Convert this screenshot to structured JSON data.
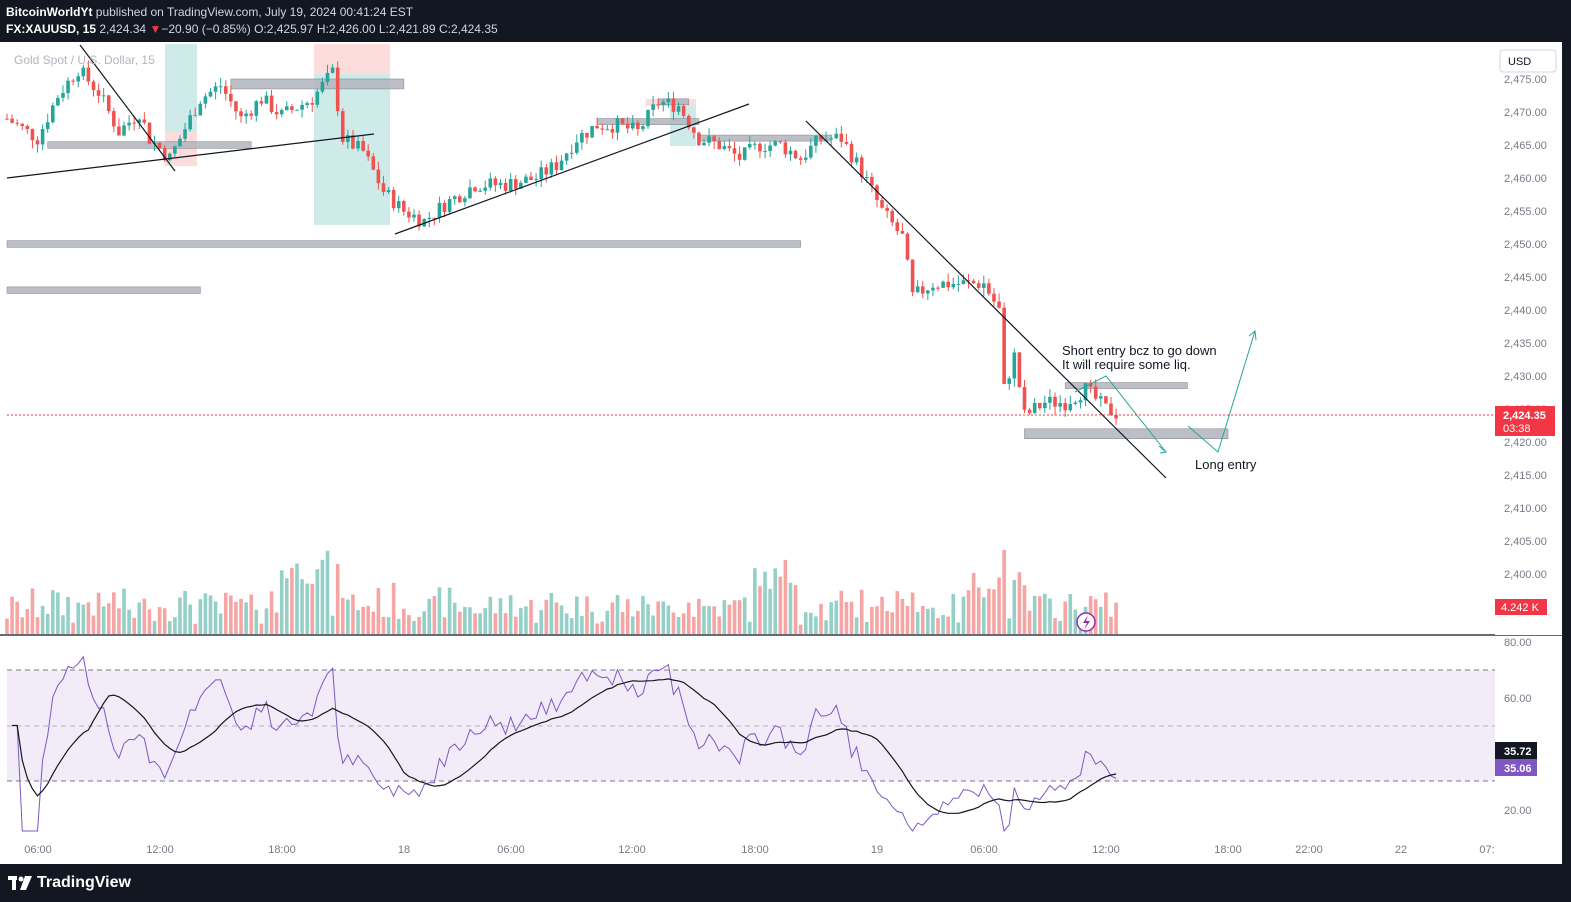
{
  "header": {
    "publisher": "BitcoinWorldYt",
    "published_on": "published on TradingView.com, July 19, 2024 00:41:24 EST",
    "symbol": "FX:XAUUSD, 15",
    "last": "2,424.34",
    "change_arrow": "▼",
    "change": "−20.90 (−0.85%)",
    "o_label": "O:",
    "o": "2,425.97",
    "h_label": "H:",
    "h": "2,426.00",
    "l_label": "L:",
    "l": "2,421.89",
    "c_label": "C:",
    "c": "2,424.35"
  },
  "chart_title": "Gold Spot / U.S. Dollar, 15",
  "currency_button": "USD",
  "colors": {
    "up": "#26a69a",
    "down": "#ef5350",
    "up_vol": "#94d0c7",
    "down_vol": "#f5a6a4",
    "rsi": "#7e57c2",
    "price_tag": "#f23645"
  },
  "price_axis": {
    "ticks": [
      "2,475.00",
      "2,470.00",
      "2,465.00",
      "2,460.00",
      "2,455.00",
      "2,450.00",
      "2,445.00",
      "2,440.00",
      "2,435.00",
      "2,430.00",
      "2,425.00",
      "2,420.00",
      "2,415.00",
      "2,410.00",
      "2,405.00",
      "2,400.00"
    ]
  },
  "current_price": {
    "value": "2,424.35",
    "countdown": "03:38"
  },
  "volume": {
    "label": "4.242 K"
  },
  "rsi_panel": {
    "ticks": [
      "80.00",
      "60.00",
      "20.00"
    ],
    "rsi_value": "35.06",
    "ma_value": "35.72"
  },
  "time_axis": [
    "06:00",
    "12:00",
    "18:00",
    "18",
    "06:00",
    "12:00",
    "18:00",
    "19",
    "06:00",
    "12:00",
    "18:00",
    "22:00",
    "22",
    "07:"
  ],
  "annotations": {
    "short_line1": "Short entry bcz to go down",
    "short_line2": "It will require some liq.",
    "long": "Long entry"
  },
  "footer": {
    "brand": "TradingView"
  },
  "chart_data": {
    "type": "candlestick",
    "title": "Gold Spot / U.S. Dollar, 15",
    "symbol": "FX:XAUUSD",
    "interval": "15",
    "currency": "USD",
    "ylim": [
      2396,
      2478
    ],
    "last_price": 2424.35,
    "close_path": [
      {
        "t": "07-17 04:00",
        "price": 2469.0
      },
      {
        "t": "07-17 05:30",
        "price": 2466.0
      },
      {
        "t": "07-17 06:30",
        "price": 2472.5
      },
      {
        "t": "07-17 07:30",
        "price": 2476.5
      },
      {
        "t": "07-17 08:30",
        "price": 2473.0
      },
      {
        "t": "07-17 09:30",
        "price": 2467.0
      },
      {
        "t": "07-17 10:30",
        "price": 2470.0
      },
      {
        "t": "07-17 11:00",
        "price": 2466.0
      },
      {
        "t": "07-17 12:00",
        "price": 2463.0
      },
      {
        "t": "07-17 13:30",
        "price": 2472.0
      },
      {
        "t": "07-17 14:30",
        "price": 2474.0
      },
      {
        "t": "07-17 15:30",
        "price": 2469.0
      },
      {
        "t": "07-17 16:30",
        "price": 2472.0
      },
      {
        "t": "07-17 17:30",
        "price": 2469.5
      },
      {
        "t": "07-17 19:00",
        "price": 2472.0
      },
      {
        "t": "07-17 20:00",
        "price": 2476.0
      },
      {
        "t": "07-17 20:30",
        "price": 2466.0
      },
      {
        "t": "07-17 21:30",
        "price": 2464.0
      },
      {
        "t": "07-17 22:30",
        "price": 2458.0
      },
      {
        "t": "07-17 23:30",
        "price": 2455.0
      },
      {
        "t": "07-18 00:30",
        "price": 2453.5
      },
      {
        "t": "07-18 01:30",
        "price": 2456.0
      },
      {
        "t": "07-18 03:00",
        "price": 2459.0
      },
      {
        "t": "07-18 04:30",
        "price": 2459.0
      },
      {
        "t": "07-18 06:00",
        "price": 2460.0
      },
      {
        "t": "07-18 07:00",
        "price": 2462.0
      },
      {
        "t": "07-18 08:00",
        "price": 2466.0
      },
      {
        "t": "07-18 09:00",
        "price": 2468.0
      },
      {
        "t": "07-18 10:00",
        "price": 2468.0
      },
      {
        "t": "07-18 11:00",
        "price": 2467.0
      },
      {
        "t": "07-18 12:00",
        "price": 2471.5
      },
      {
        "t": "07-18 13:00",
        "price": 2471.0
      },
      {
        "t": "07-18 14:00",
        "price": 2466.0
      },
      {
        "t": "07-18 15:00",
        "price": 2465.0
      },
      {
        "t": "07-18 16:00",
        "price": 2463.0
      },
      {
        "t": "07-18 17:00",
        "price": 2465.0
      },
      {
        "t": "07-18 18:00",
        "price": 2465.0
      },
      {
        "t": "07-18 19:00",
        "price": 2463.0
      },
      {
        "t": "07-18 20:00",
        "price": 2466.0
      },
      {
        "t": "07-18 21:00",
        "price": 2466.0
      },
      {
        "t": "07-18 22:00",
        "price": 2461.0
      },
      {
        "t": "07-18 23:00",
        "price": 2455.0
      },
      {
        "t": "07-19 00:00",
        "price": 2451.0
      },
      {
        "t": "07-19 00:30",
        "price": 2442.0
      },
      {
        "t": "07-19 01:30",
        "price": 2444.0
      },
      {
        "t": "07-19 02:30",
        "price": 2444.0
      },
      {
        "t": "07-19 04:00",
        "price": 2444.0
      },
      {
        "t": "07-19 04:45",
        "price": 2440.0
      },
      {
        "t": "07-19 05:00",
        "price": 2428.0
      },
      {
        "t": "07-19 05:30",
        "price": 2433.0
      },
      {
        "t": "07-19 06:00",
        "price": 2424.0
      },
      {
        "t": "07-19 07:00",
        "price": 2426.0
      },
      {
        "t": "07-19 08:00",
        "price": 2426.0
      },
      {
        "t": "07-19 09:00",
        "price": 2428.0
      },
      {
        "t": "07-19 10:00",
        "price": 2425.0
      },
      {
        "t": "07-19 10:30",
        "price": 2424.35
      }
    ],
    "zones": [
      {
        "from": "07-17 06:00",
        "to": "07-17 16:00",
        "low": 2464.5,
        "high": 2465.5
      },
      {
        "from": "07-17 15:00",
        "to": "07-17 23:30",
        "low": 2473.5,
        "high": 2475.0
      },
      {
        "from": "07-17 04:00",
        "to": "07-18 19:00",
        "low": 2449.5,
        "high": 2450.5
      },
      {
        "from": "07-17 04:00",
        "to": "07-17 13:30",
        "low": 2442.5,
        "high": 2443.5
      },
      {
        "from": "07-18 12:00",
        "to": "07-18 13:30",
        "low": 2471.5,
        "high": 2472.0
      },
      {
        "from": "07-18 09:00",
        "to": "07-18 14:00",
        "low": 2468.5,
        "high": 2469.0
      },
      {
        "from": "07-18 14:00",
        "to": "07-18 20:30",
        "low": 2466.0,
        "high": 2466.5
      },
      {
        "from": "07-19 08:00",
        "to": "07-19 14:00",
        "low": 2428.5,
        "high": 2429.0
      },
      {
        "from": "07-19 06:00",
        "to": "07-19 16:00",
        "low": 2420.5,
        "high": 2422.0
      }
    ],
    "volume_last": "4.242K",
    "rsi": {
      "value": 35.06,
      "ma": 35.72,
      "upper_band": 70,
      "middle_band": 50,
      "lower_band": 30
    }
  }
}
